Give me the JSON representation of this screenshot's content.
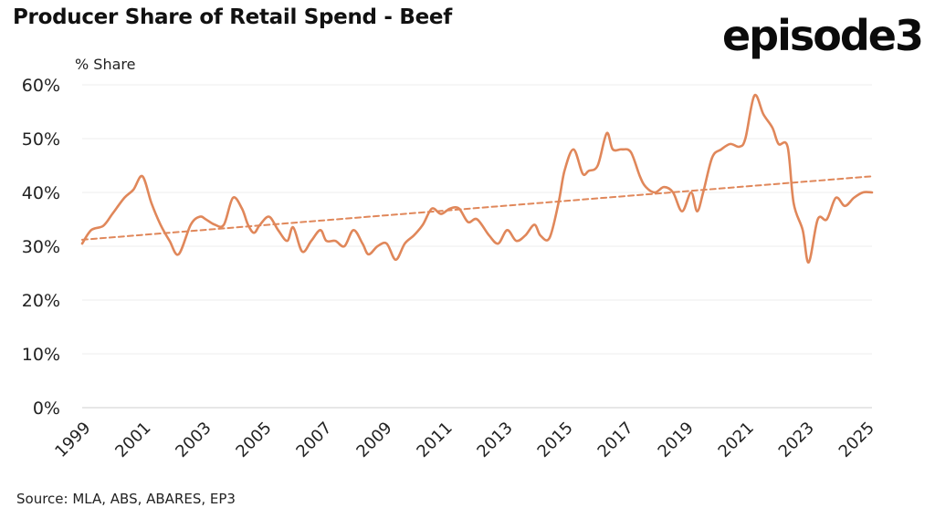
{
  "header": {
    "title": "Producer Share of Retail Spend - Beef",
    "logo": "episode3"
  },
  "footer": {
    "source": "Source: MLA, ABS, ABARES, EP3"
  },
  "colors": {
    "series": "#E0875A",
    "grid": "#ececec",
    "text": "#222222"
  },
  "chart_data": {
    "type": "line",
    "title": "Producer Share of Retail Spend - Beef",
    "ylabel": "% Share",
    "xlabel": "",
    "ylim": [
      0,
      60
    ],
    "xlim": [
      1999,
      2025.2
    ],
    "y_ticks": [
      "0%",
      "10%",
      "20%",
      "30%",
      "40%",
      "50%",
      "60%"
    ],
    "y_tick_values": [
      0,
      10,
      20,
      30,
      40,
      50,
      60
    ],
    "x_ticks": [
      "1999",
      "2001",
      "2003",
      "2005",
      "2007",
      "2009",
      "2011",
      "2013",
      "2015",
      "2017",
      "2019",
      "2021",
      "2023",
      "2025"
    ],
    "x_tick_values": [
      1999,
      2001,
      2003,
      2005,
      2007,
      2009,
      2011,
      2013,
      2015,
      2017,
      2019,
      2021,
      2023,
      2025
    ],
    "grid": true,
    "legend": "none",
    "series": [
      {
        "style": "solid",
        "x": [
          1999,
          1999.3,
          1999.7,
          2000.0,
          2000.4,
          2000.7,
          2001.0,
          2001.3,
          2001.6,
          2001.9,
          2002.2,
          2002.6,
          2002.9,
          2003.1,
          2003.4,
          2003.7,
          2004.0,
          2004.3,
          2004.5,
          2004.7,
          2004.9,
          2005.2,
          2005.5,
          2005.8,
          2006.0,
          2006.3,
          2006.6,
          2006.9,
          2007.1,
          2007.4,
          2007.7,
          2008.0,
          2008.3,
          2008.5,
          2008.8,
          2009.1,
          2009.4,
          2009.7,
          2010.0,
          2010.3,
          2010.6,
          2010.9,
          2011.2,
          2011.5,
          2011.8,
          2012.1,
          2012.5,
          2012.8,
          2013.1,
          2013.4,
          2013.7,
          2014.0,
          2014.2,
          2014.5,
          2014.8,
          2015.0,
          2015.3,
          2015.6,
          2015.8,
          2016.1,
          2016.4,
          2016.6,
          2016.9,
          2017.2,
          2017.5,
          2017.7,
          2018.0,
          2018.3,
          2018.6,
          2018.9,
          2019.2,
          2019.4,
          2019.6,
          2019.9,
          2020.2,
          2020.5,
          2020.8,
          2021.0,
          2021.3,
          2021.6,
          2021.9,
          2022.1,
          2022.4,
          2022.6,
          2022.9,
          2023.1,
          2023.4,
          2023.7,
          2024.0,
          2024.3,
          2024.6,
          2024.9,
          2025.2
        ],
        "values": [
          30.5,
          33,
          33.8,
          36,
          39,
          40.5,
          43,
          38,
          34,
          31,
          28.5,
          34,
          35.5,
          35,
          34,
          34,
          39,
          37,
          34,
          32.5,
          34,
          35.5,
          33,
          31,
          33.5,
          29,
          31,
          33,
          31,
          31,
          30,
          33,
          30.5,
          28.5,
          30,
          30.5,
          27.5,
          30.5,
          32,
          34,
          37,
          36,
          37,
          37,
          34.5,
          35,
          32,
          30.5,
          33,
          31,
          32,
          34,
          32,
          31.5,
          38,
          44,
          48,
          43.5,
          44,
          45,
          51,
          48,
          48,
          47.5,
          43,
          41,
          40,
          41,
          40,
          36.5,
          40,
          36.5,
          40,
          46.5,
          48,
          49,
          48.5,
          50,
          58,
          54.5,
          52,
          49,
          48.5,
          38,
          33,
          27,
          35,
          35,
          39,
          37.5,
          39,
          40,
          40
        ]
      },
      {
        "style": "dashed",
        "x": [
          1999,
          2025.2
        ],
        "values": [
          31.2,
          43
        ]
      }
    ]
  }
}
